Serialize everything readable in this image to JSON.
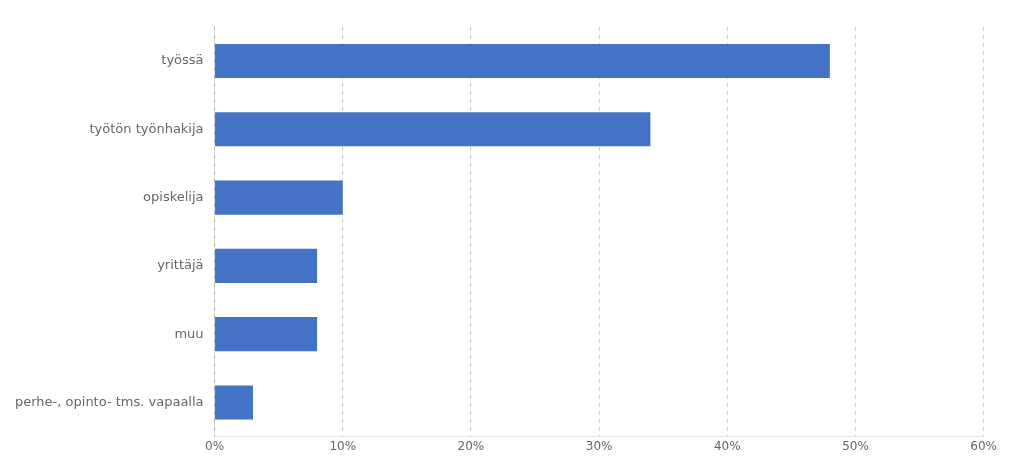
{
  "chart_data": {
    "type": "bar",
    "orientation": "horizontal",
    "categories": [
      "työssä",
      "työtön työnhakija",
      "opiskelija",
      "yrittäjä",
      "muu",
      "perhe-, opinto- tms. vapaalla"
    ],
    "values": [
      48,
      34,
      10,
      8,
      8,
      3
    ],
    "color": "#4472C4",
    "xlim": [
      0,
      60
    ],
    "xticks": [
      {
        "value": 0,
        "label": "0%"
      },
      {
        "value": 10,
        "label": "10%"
      },
      {
        "value": 20,
        "label": "20%"
      },
      {
        "value": 30,
        "label": "30%"
      },
      {
        "value": 40,
        "label": "40%"
      },
      {
        "value": 50,
        "label": "50%"
      },
      {
        "value": 60,
        "label": "60%"
      }
    ],
    "grid": true
  }
}
